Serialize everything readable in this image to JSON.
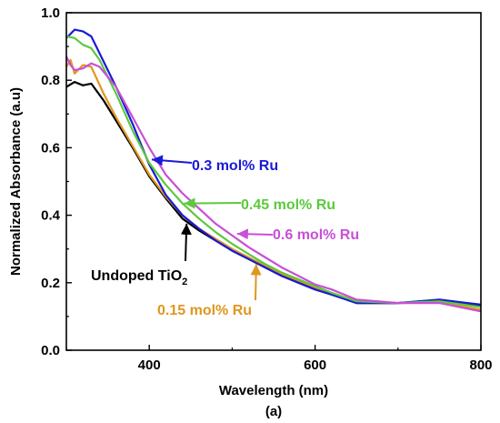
{
  "chart_data": {
    "type": "line",
    "xlabel": "Wavelength (nm)",
    "ylabel": "Normalized Absorbance (a.u)",
    "panel_label": "(a)",
    "xlim": [
      300,
      800
    ],
    "ylim": [
      0.0,
      1.0
    ],
    "x_ticks": [
      "400",
      "600",
      "800"
    ],
    "x_tick_values": [
      400,
      600,
      800
    ],
    "y_ticks": [
      "0.0",
      "0.2",
      "0.4",
      "0.6",
      "0.8",
      "1.0"
    ],
    "y_tick_values": [
      0.0,
      0.2,
      0.4,
      0.6,
      0.8,
      1.0
    ],
    "grid": false,
    "legend": "none (curves labeled by in-plot annotations with arrows)",
    "series": [
      {
        "name": "Undoped TiO2",
        "color": "#000000",
        "x": [
          300,
          310,
          320,
          330,
          345,
          360,
          380,
          400,
          420,
          440,
          460,
          480,
          500,
          520,
          540,
          560,
          580,
          600,
          620,
          650,
          700,
          750,
          800
        ],
        "y": [
          0.78,
          0.795,
          0.785,
          0.79,
          0.74,
          0.68,
          0.6,
          0.515,
          0.45,
          0.39,
          0.355,
          0.325,
          0.295,
          0.27,
          0.245,
          0.22,
          0.2,
          0.18,
          0.165,
          0.14,
          0.14,
          0.148,
          0.13
        ]
      },
      {
        "name": "0.15 mol% Ru",
        "color": "#e0961f",
        "x": [
          300,
          305,
          310,
          320,
          330,
          345,
          360,
          380,
          400,
          420,
          440,
          460,
          480,
          500,
          520,
          540,
          560,
          580,
          600,
          620,
          650,
          700,
          750,
          800
        ],
        "y": [
          0.84,
          0.86,
          0.82,
          0.845,
          0.84,
          0.76,
          0.69,
          0.605,
          0.52,
          0.455,
          0.4,
          0.36,
          0.33,
          0.3,
          0.275,
          0.25,
          0.225,
          0.205,
          0.185,
          0.17,
          0.145,
          0.14,
          0.142,
          0.12
        ]
      },
      {
        "name": "0.3 mol% Ru",
        "color": "#1a1ad6",
        "x": [
          300,
          310,
          320,
          330,
          340,
          350,
          360,
          380,
          400,
          420,
          440,
          460,
          480,
          500,
          520,
          540,
          560,
          580,
          600,
          620,
          650,
          700,
          750,
          800
        ],
        "y": [
          0.925,
          0.95,
          0.945,
          0.93,
          0.88,
          0.83,
          0.78,
          0.67,
          0.55,
          0.46,
          0.4,
          0.36,
          0.325,
          0.295,
          0.27,
          0.245,
          0.22,
          0.2,
          0.18,
          0.165,
          0.14,
          0.14,
          0.15,
          0.135
        ]
      },
      {
        "name": "0.45 mol% Ru",
        "color": "#5cc93c",
        "x": [
          300,
          310,
          320,
          330,
          340,
          350,
          360,
          380,
          400,
          420,
          440,
          460,
          480,
          500,
          520,
          540,
          560,
          580,
          600,
          620,
          650,
          700,
          750,
          800
        ],
        "y": [
          0.93,
          0.925,
          0.905,
          0.895,
          0.86,
          0.81,
          0.76,
          0.65,
          0.555,
          0.49,
          0.435,
          0.39,
          0.35,
          0.315,
          0.285,
          0.255,
          0.23,
          0.21,
          0.19,
          0.17,
          0.145,
          0.14,
          0.145,
          0.128
        ]
      },
      {
        "name": "0.6 mol% Ru",
        "color": "#c84fd6",
        "x": [
          300,
          305,
          310,
          320,
          330,
          340,
          350,
          360,
          380,
          400,
          420,
          440,
          460,
          480,
          500,
          520,
          540,
          560,
          580,
          600,
          620,
          650,
          700,
          750,
          800
        ],
        "y": [
          0.87,
          0.845,
          0.83,
          0.835,
          0.85,
          0.84,
          0.81,
          0.78,
          0.69,
          0.6,
          0.52,
          0.465,
          0.42,
          0.375,
          0.34,
          0.305,
          0.275,
          0.245,
          0.22,
          0.195,
          0.18,
          0.15,
          0.14,
          0.14,
          0.115
        ]
      }
    ],
    "annotations": [
      {
        "text": "0.3 mol% Ru",
        "color": "#1a1ad6",
        "series": "0.3 mol% Ru",
        "arrow_to": [
          403,
          0.565
        ]
      },
      {
        "text": "0.45 mol% Ru",
        "color": "#5cc93c",
        "series": "0.45 mol% Ru",
        "arrow_to": [
          442,
          0.435
        ]
      },
      {
        "text": "0.6 mol% Ru",
        "color": "#c84fd6",
        "series": "0.6 mol% Ru",
        "arrow_to": [
          506,
          0.345
        ]
      },
      {
        "text": "Undoped TiO",
        "subscript": "2",
        "color": "#000000",
        "series": "Undoped TiO2",
        "arrow_to": [
          445,
          0.375
        ]
      },
      {
        "text": "0.15 mol% Ru",
        "color": "#e0961f",
        "series": "0.15 mol% Ru",
        "arrow_to": [
          529,
          0.255
        ]
      }
    ]
  }
}
